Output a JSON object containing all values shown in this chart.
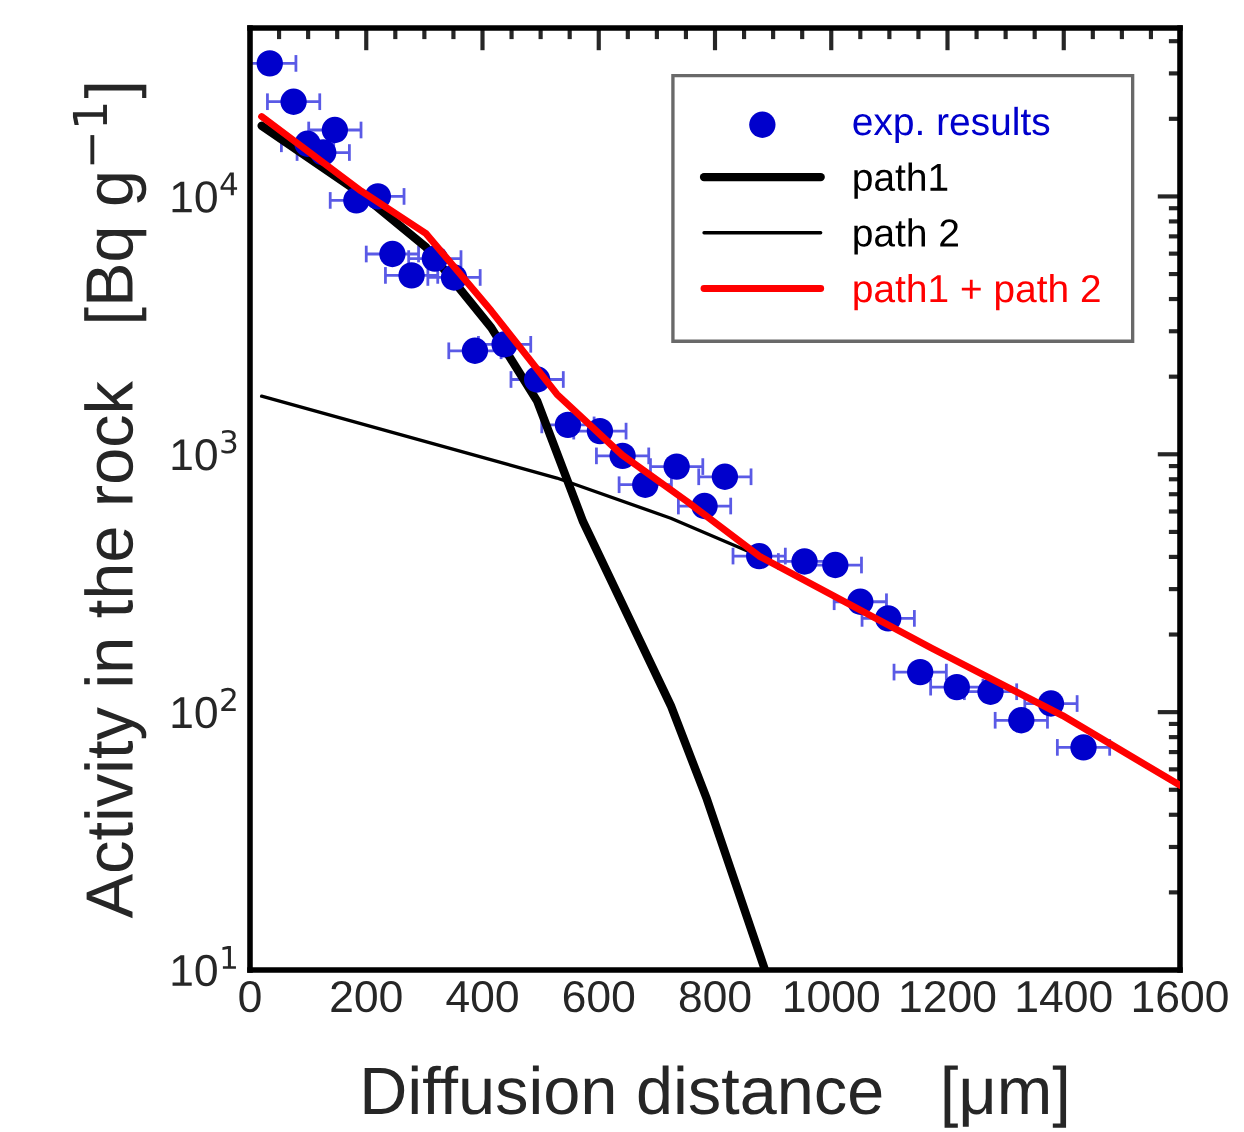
{
  "chart_data": {
    "type": "scatter",
    "xlabel": "Diffusion distance   [μm]",
    "ylabel": "Activity in the rock   [Bq g$^{−1}$]",
    "xlim": [
      0,
      1600
    ],
    "xticks": [
      0,
      200,
      400,
      600,
      800,
      1000,
      1200,
      1400,
      1600
    ],
    "ylim": [
      10,
      45000
    ],
    "yticks": [
      {
        "value": 10,
        "label": "10$^{1}$"
      },
      {
        "value": 100,
        "label": "10$^{2}$"
      },
      {
        "value": 1000,
        "label": "10$^{3}$"
      },
      {
        "value": 10000,
        "label": "10$^{4}$"
      }
    ],
    "log": "y",
    "grid": false,
    "legend": "top right",
    "series": [
      {
        "name": "exp. results",
        "marker": "circle",
        "color": "#0000cc",
        "x": [
          34,
          75,
          99,
          126,
          146,
          183,
          220,
          245,
          278,
          318,
          351,
          387,
          438,
          494,
          547,
          602,
          641,
          680,
          734,
          782,
          817,
          876,
          954,
          1007,
          1050,
          1098,
          1153,
          1216,
          1274,
          1327,
          1378,
          1434
        ],
        "values": [
          32800,
          23300,
          16000,
          14800,
          18100,
          9650,
          10000,
          5980,
          4940,
          5740,
          4850,
          2520,
          2670,
          1950,
          1300,
          1230,
          986,
          762,
          896,
          630,
          818,
          403,
          384,
          372,
          268,
          231,
          143,
          125,
          120,
          93,
          108,
          73
        ],
        "xerrors": [
          45,
          45,
          45,
          45,
          45,
          45,
          45,
          45,
          45,
          45,
          45,
          45,
          45,
          45,
          45,
          45,
          45,
          45,
          45,
          45,
          45,
          45,
          45,
          45,
          45,
          45,
          45,
          45,
          45,
          45,
          45,
          45
        ]
      },
      {
        "name": "path1",
        "type": "line",
        "marker": "none",
        "color": "#000000",
        "x": [
          20,
          191,
          303,
          415,
          494,
          573,
          724,
          786,
          886
        ],
        "values": [
          18800,
          10240,
          6350,
          3100,
          1610,
          548,
          106,
          46,
          10
        ]
      },
      {
        "name": "path 2",
        "type": "line",
        "marker": "none",
        "color": "#000000",
        "x": [
          20,
          528,
          724,
          876,
          1173,
          1398,
          1600
        ],
        "values": [
          1680,
          809,
          565,
          403,
          177,
          97,
          52
        ]
      },
      {
        "name": "path1 + path 2",
        "type": "line",
        "marker": "none",
        "color": "#ff0000",
        "x": [
          20,
          191,
          303,
          415,
          528,
          640,
          752,
          876,
          1173,
          1398,
          1600
        ],
        "values": [
          20400,
          10500,
          7170,
          3600,
          1710,
          995,
          656,
          403,
          177,
          97,
          52
        ]
      }
    ]
  }
}
